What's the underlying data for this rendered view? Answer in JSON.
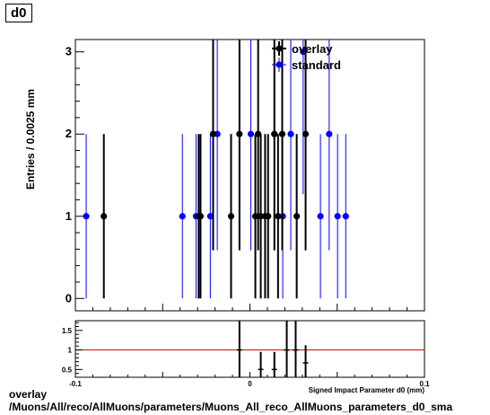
{
  "page": {
    "title": "d0",
    "caption_line1": "overlay",
    "caption_line2": "/Muons/All/reco/AllMuons/parameters/Muons_All_reco_AllMuons_parameters_d0_sma"
  },
  "colors": {
    "overlay": "#000000",
    "standard": "#0000ff",
    "ratio_line": "#cc0000",
    "frame": "#000000"
  },
  "chart_data": [
    {
      "type": "scatter",
      "title": "",
      "ylabel": "Entries / 0.0025 mm",
      "xlim": [
        -0.1,
        0.1
      ],
      "ylim": [
        -0.15,
        3.15
      ],
      "yticks": [
        "0",
        "1",
        "2",
        "3"
      ],
      "legend_placement": "top-right",
      "series": [
        {
          "name": "overlay",
          "points": [
            {
              "x": -0.0837,
              "y": 1
            },
            {
              "x": -0.0294,
              "y": 1
            },
            {
              "x": -0.0283,
              "y": 1
            },
            {
              "x": -0.0108,
              "y": 1
            },
            {
              "x": -0.0211,
              "y": 2
            },
            {
              "x": -0.006,
              "y": 2
            },
            {
              "x": 0.0031,
              "y": 1
            },
            {
              "x": 0.0047,
              "y": 2
            },
            {
              "x": 0.0062,
              "y": 1
            },
            {
              "x": 0.0087,
              "y": 1
            },
            {
              "x": 0.0104,
              "y": 1
            },
            {
              "x": 0.014,
              "y": 2
            },
            {
              "x": 0.0161,
              "y": 1
            },
            {
              "x": 0.0185,
              "y": 2
            },
            {
              "x": 0.0268,
              "y": 1
            },
            {
              "x": 0.0319,
              "y": 2
            }
          ]
        },
        {
          "name": "standard",
          "points": [
            {
              "x": -0.0938,
              "y": 1
            },
            {
              "x": -0.0387,
              "y": 1
            },
            {
              "x": -0.0309,
              "y": 1
            },
            {
              "x": -0.0227,
              "y": 1
            },
            {
              "x": -0.0187,
              "y": 2
            },
            {
              "x": 0.0005,
              "y": 2
            },
            {
              "x": 0.014,
              "y": 2
            },
            {
              "x": 0.0188,
              "y": 1
            },
            {
              "x": 0.0234,
              "y": 2
            },
            {
              "x": 0.0305,
              "y": 3
            },
            {
              "x": 0.0404,
              "y": 1
            },
            {
              "x": 0.0454,
              "y": 2
            },
            {
              "x": 0.0502,
              "y": 1
            },
            {
              "x": 0.0549,
              "y": 1
            }
          ]
        }
      ]
    },
    {
      "type": "scatter",
      "title": "",
      "xlabel": "Signed Impact Parameter d0 (mm)",
      "xlim": [
        -0.1,
        0.1
      ],
      "xticks": [
        "-0.1",
        "0",
        "0.1"
      ],
      "ylim": [
        0.3,
        1.75
      ],
      "yticks": [
        "0.5",
        "1",
        "1.5"
      ],
      "reference_line": 1,
      "series": [
        {
          "name": "",
          "points": [
            {
              "x": -0.006,
              "y": 1.0
            },
            {
              "x": 0.0062,
              "y": 0.5
            },
            {
              "x": 0.014,
              "y": 0.5
            },
            {
              "x": 0.0211,
              "y": 1.0
            },
            {
              "x": 0.0262,
              "y": 1.0
            },
            {
              "x": 0.0319,
              "y": 0.67
            }
          ]
        }
      ]
    }
  ]
}
